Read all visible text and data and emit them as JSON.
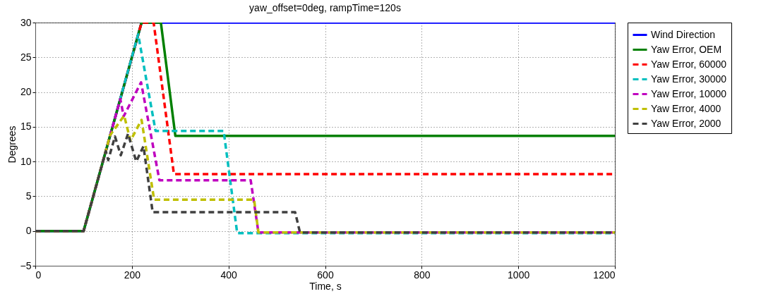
{
  "chart_data": {
    "type": "line",
    "title": "yaw_offset=0deg, rampTime=120s",
    "xlabel": "Time, s",
    "ylabel": "Degrees",
    "xlim": [
      0,
      1200
    ],
    "xticks": [
      0,
      200,
      400,
      600,
      800,
      1000,
      1200
    ],
    "ylim": [
      -5,
      30
    ],
    "yticks": [
      -5,
      0,
      5,
      10,
      15,
      20,
      25,
      30
    ],
    "grid": true,
    "legend": "right",
    "series": [
      {
        "name": "Wind Direction",
        "color": "#0000ff",
        "line_style": "solid",
        "x": [
          0,
          100,
          220,
          1200
        ],
        "values": [
          0,
          0,
          30,
          30
        ]
      },
      {
        "name": "Yaw Error, OEM",
        "color": "#008000",
        "line_style": "solid",
        "x": [
          0,
          100,
          220,
          260,
          290,
          1200
        ],
        "values": [
          0,
          0,
          30,
          30,
          13.7,
          13.7
        ]
      },
      {
        "name": "Yaw Error, 60000",
        "color": "#ff0000",
        "line_style": "dashed",
        "x": [
          0,
          100,
          220,
          245,
          287,
          1200
        ],
        "values": [
          0,
          0,
          30,
          30,
          8.2,
          8.2
        ]
      },
      {
        "name": "Yaw Error, 30000",
        "color": "#00bfbf",
        "line_style": "dashed",
        "x": [
          0,
          100,
          213,
          249,
          390,
          418,
          1200
        ],
        "values": [
          0,
          0,
          28.3,
          14.4,
          14.4,
          -0.3,
          -0.3
        ]
      },
      {
        "name": "Yaw Error, 10000",
        "color": "#bf00bf",
        "line_style": "dashed",
        "x": [
          0,
          100,
          176,
          183,
          219,
          257,
          446,
          462,
          1200
        ],
        "values": [
          0,
          0,
          19,
          16.5,
          21.4,
          7.3,
          7.3,
          -0.2,
          -0.2
        ]
      },
      {
        "name": "Yaw Error, 4000",
        "color": "#bfbf00",
        "line_style": "dashed",
        "x": [
          0,
          100,
          155,
          184,
          197,
          220,
          246,
          453,
          462,
          1200
        ],
        "values": [
          0,
          0,
          13.8,
          16.6,
          13,
          16,
          4.5,
          4.5,
          -0.2,
          -0.2
        ]
      },
      {
        "name": "Yaw Error, 2000",
        "color": "#404040",
        "line_style": "dashed",
        "x": [
          0,
          100,
          146,
          151,
          165,
          177,
          192,
          209,
          224,
          243,
          538,
          548,
          1200
        ],
        "values": [
          0,
          0,
          11.5,
          10.2,
          13.6,
          10.9,
          14,
          10,
          12.2,
          2.7,
          2.7,
          -0.2,
          -0.2
        ]
      }
    ]
  }
}
